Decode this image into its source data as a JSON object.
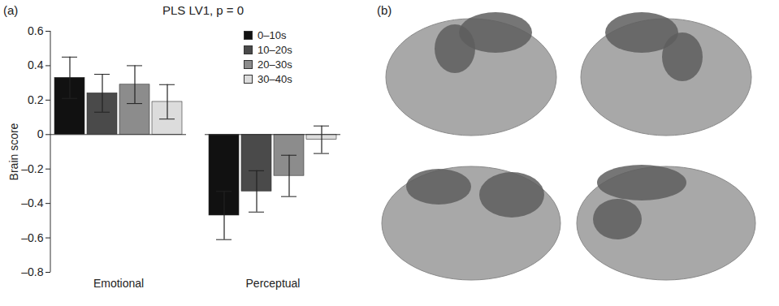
{
  "chart_data": {
    "type": "bar",
    "title": "PLS LV1, p = 0",
    "annotations": [
      "(a)",
      "(b)"
    ],
    "y_label": "Brain score",
    "categories": [
      "Emotional",
      "Perceptual"
    ],
    "series": [
      {
        "name": "0–10s",
        "color": "#111111",
        "values": [
          0.33,
          -0.47
        ],
        "errors": [
          0.12,
          0.14
        ]
      },
      {
        "name": "10–20s",
        "color": "#4a4a4a",
        "values": [
          0.24,
          -0.33
        ],
        "errors": [
          0.11,
          0.12
        ]
      },
      {
        "name": "20–30s",
        "color": "#8c8c8c",
        "values": [
          0.29,
          -0.24
        ],
        "errors": [
          0.11,
          0.12
        ]
      },
      {
        "name": "30–40s",
        "color": "#dcdcdc",
        "values": [
          0.19,
          -0.03
        ],
        "errors": [
          0.1,
          0.08
        ]
      }
    ],
    "ylim": [
      -0.8,
      0.6
    ],
    "yticks": [
      {
        "value": -0.8,
        "label": "–0.8"
      },
      {
        "value": -0.6,
        "label": "–0.6"
      },
      {
        "value": -0.4,
        "label": "–0.4"
      },
      {
        "value": -0.2,
        "label": "–0.2"
      },
      0,
      0.2,
      0.4,
      0.6
    ],
    "legend": "upper right",
    "grid": false
  }
}
